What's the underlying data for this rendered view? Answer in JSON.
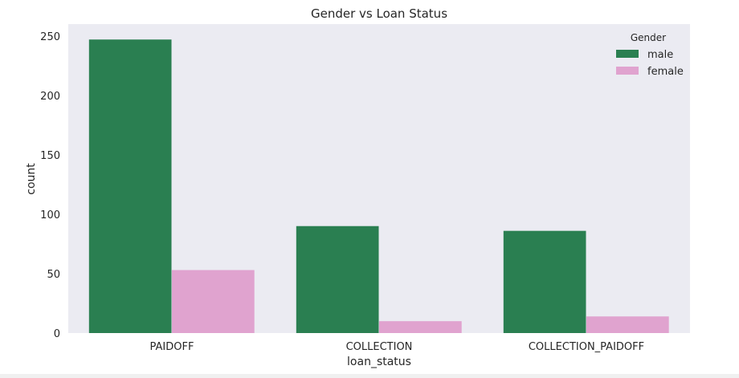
{
  "chart_data": {
    "type": "bar",
    "title": "Gender vs Loan Status",
    "xlabel": "loan_status",
    "ylabel": "count",
    "categories": [
      "PAIDOFF",
      "COLLECTION",
      "COLLECTION_PAIDOFF"
    ],
    "series": [
      {
        "name": "male",
        "color": "#2a7f51",
        "values": [
          247,
          90,
          86
        ]
      },
      {
        "name": "female",
        "color": "#e0a3cf",
        "values": [
          53,
          10,
          14
        ]
      }
    ],
    "ylim": [
      0,
      260
    ],
    "yticks": [
      0,
      50,
      100,
      150,
      200,
      250
    ],
    "legend": {
      "title": "Gender",
      "position": "top-right"
    },
    "grid": false,
    "background": "#ebebf2"
  }
}
